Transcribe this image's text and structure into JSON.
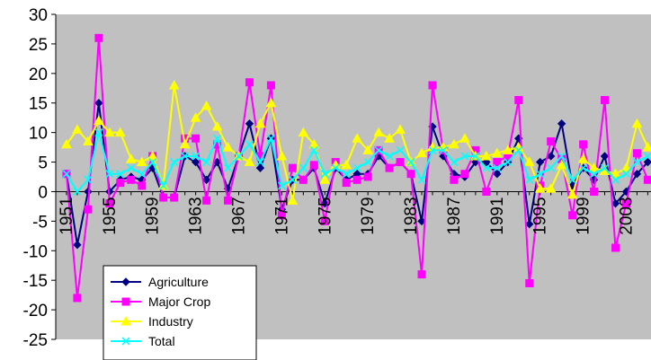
{
  "chart_data": {
    "type": "line",
    "title": "",
    "xlabel": "",
    "ylabel": "",
    "ylim": [
      -25,
      30
    ],
    "yticks": [
      -25,
      -20,
      -15,
      -10,
      -5,
      0,
      5,
      10,
      15,
      20,
      25,
      30
    ],
    "grid": false,
    "plot_background": "#C0C0C0",
    "x_tick_labels": [
      "1951",
      "1955",
      "1959",
      "1963",
      "1967",
      "1971",
      "1975",
      "1979",
      "1983",
      "1987",
      "1991",
      "1995",
      "1999",
      "2003"
    ],
    "x": [
      1951,
      1952,
      1953,
      1954,
      1955,
      1956,
      1957,
      1958,
      1959,
      1960,
      1961,
      1962,
      1963,
      1964,
      1965,
      1966,
      1967,
      1968,
      1969,
      1970,
      1971,
      1972,
      1973,
      1974,
      1975,
      1976,
      1977,
      1978,
      1979,
      1980,
      1981,
      1982,
      1983,
      1984,
      1985,
      1986,
      1987,
      1988,
      1989,
      1990,
      1991,
      1992,
      1993,
      1994,
      1995,
      1996,
      1997,
      1998,
      1999,
      2000,
      2001,
      2002,
      2003,
      2004,
      2005
    ],
    "legend_position": "bottom-left",
    "series": [
      {
        "name": "Agriculture",
        "color": "#000080",
        "marker": "diamond",
        "values": [
          3,
          -9,
          0,
          15,
          0,
          2,
          2.5,
          2,
          4,
          -1,
          -1,
          6,
          5,
          2,
          5,
          0.5,
          6,
          11.5,
          4,
          9,
          -3,
          2,
          2,
          4,
          -2,
          4,
          2,
          3,
          3,
          6,
          4,
          5,
          3,
          -5,
          11,
          6,
          3,
          2.5,
          5,
          5,
          3,
          5,
          9,
          -5.5,
          5,
          6,
          11.5,
          1,
          4,
          2,
          6,
          -2,
          0,
          3,
          5
        ]
      },
      {
        "name": "Major Crop",
        "color": "#FF00FF",
        "marker": "square",
        "values": [
          3,
          -18,
          -3,
          26,
          -2,
          1.5,
          2,
          1,
          6,
          -1,
          -1,
          9,
          9,
          -1.5,
          8,
          -1.5,
          6,
          18.5,
          6,
          18,
          -4,
          4,
          2,
          4.5,
          -5,
          5,
          1.5,
          2,
          2.5,
          7,
          4,
          5,
          3,
          -14,
          18,
          7,
          2,
          3,
          7,
          0,
          5,
          6,
          15.5,
          -15.5,
          1,
          8.5,
          5.5,
          -4,
          8,
          0,
          15.5,
          -9.5,
          -2,
          6.5,
          2
        ]
      },
      {
        "name": "Industry",
        "color": "#FFFF00",
        "marker": "triangle",
        "values": [
          8,
          10.5,
          8.5,
          12,
          10,
          10,
          5.5,
          5,
          6,
          1,
          18,
          8,
          12.5,
          14.5,
          11,
          7.5,
          6,
          5,
          11.5,
          15,
          6,
          -1.5,
          10,
          8,
          2,
          4.5,
          4.5,
          9,
          7,
          10,
          9,
          10.5,
          5,
          6.5,
          7.5,
          7.5,
          8,
          9,
          6,
          6,
          6.5,
          7,
          7.5,
          5,
          0.5,
          0.5,
          4.5,
          -0.5,
          5.5,
          4,
          3.5,
          3,
          4,
          11.5,
          7.5
        ]
      },
      {
        "name": "Total",
        "color": "#00FFFF",
        "marker": "x",
        "values": [
          3,
          0,
          2,
          10,
          3,
          3,
          4,
          3,
          5,
          1,
          5,
          6,
          6,
          5,
          9,
          4,
          6,
          8,
          5,
          9,
          1,
          2,
          4,
          7,
          3,
          4,
          3,
          4,
          5,
          7,
          6,
          7,
          5,
          2,
          7,
          7,
          5,
          6,
          6,
          4,
          4,
          5,
          7,
          2,
          3,
          4,
          6,
          2,
          4,
          3,
          4,
          2,
          3,
          5,
          6
        ]
      }
    ]
  }
}
